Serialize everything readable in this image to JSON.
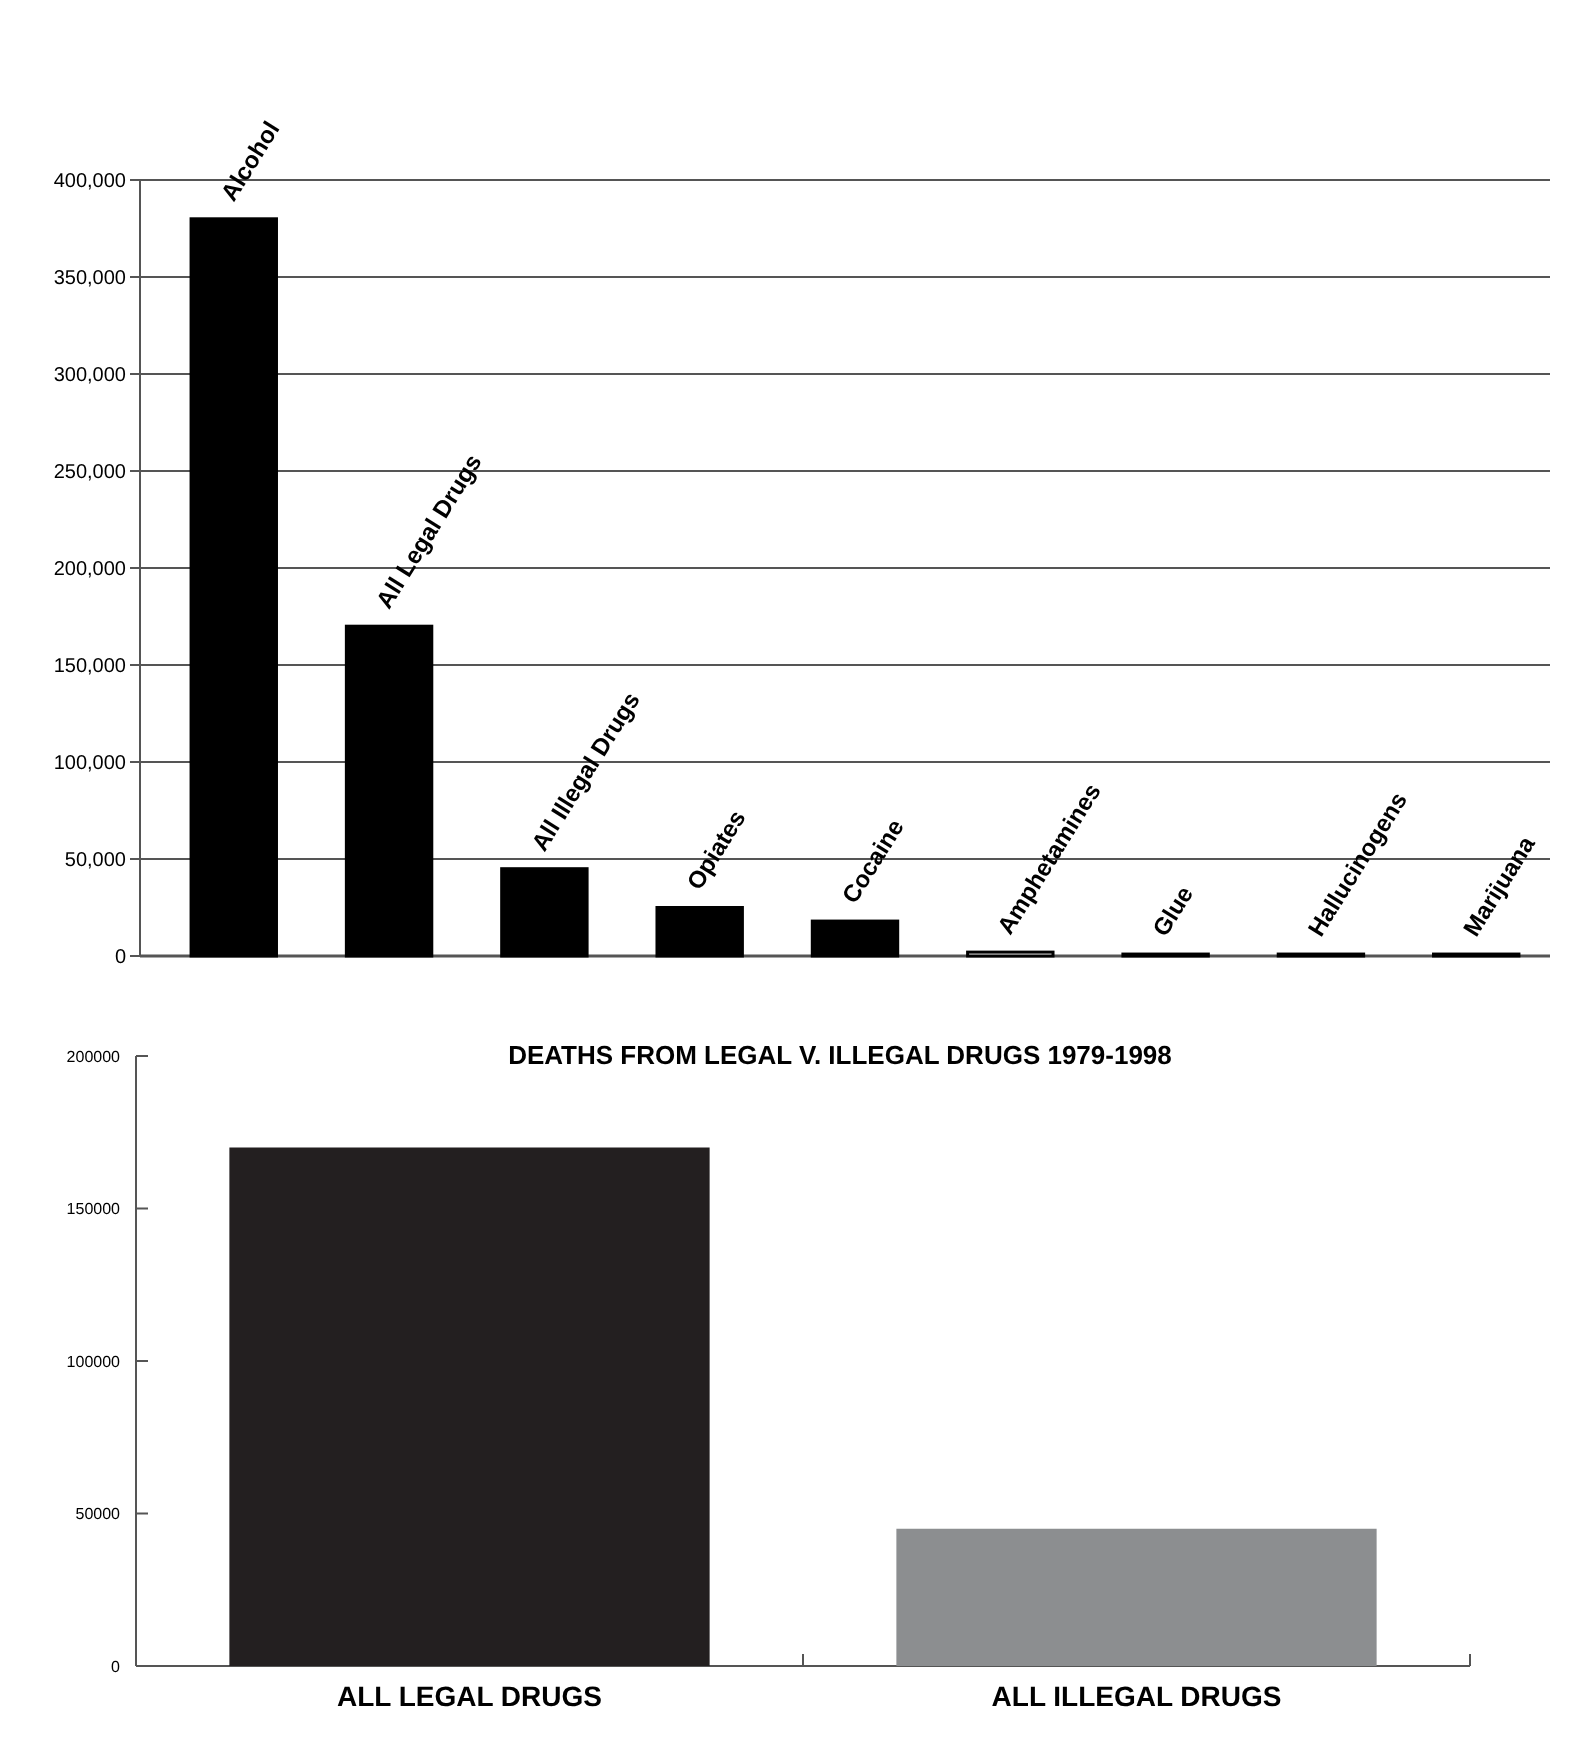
{
  "chart_data": [
    {
      "type": "bar",
      "categories": [
        "Alcohol",
        "All Legal Drugs",
        "All Illegal Drugs",
        "Opiates",
        "Cocaine",
        "Amphetamines",
        "Glue",
        "Hallucinogens",
        "Marijuana"
      ],
      "values": [
        380000,
        170000,
        45000,
        25000,
        18000,
        2000,
        1000,
        1000,
        1000
      ],
      "colors": [
        "#000000",
        "#000000",
        "#000000",
        "#000000",
        "#000000",
        "#ffffff",
        "#000000",
        "#000000",
        "#000000"
      ],
      "ylim": [
        0,
        400000
      ],
      "yticks": [
        {
          "value": 0,
          "label": "0"
        },
        {
          "value": 50000,
          "label": "50,000"
        },
        {
          "value": 100000,
          "label": "100,000"
        },
        {
          "value": 150000,
          "label": "150,000"
        },
        {
          "value": 200000,
          "label": "200,000"
        },
        {
          "value": 250000,
          "label": "250,000"
        },
        {
          "value": 300000,
          "label": "300,000"
        },
        {
          "value": 350000,
          "label": "350,000"
        },
        {
          "value": 400000,
          "label": "400,000"
        }
      ],
      "grid": "y"
    },
    {
      "type": "bar",
      "title": "DEATHS FROM LEGAL V. ILLEGAL DRUGS 1979-1998",
      "categories": [
        "ALL LEGAL DRUGS",
        "ALL ILLEGAL DRUGS"
      ],
      "values": [
        170000,
        45000
      ],
      "colors": [
        "#231f20",
        "#8c8e90"
      ],
      "ylim": [
        0,
        200000
      ],
      "yticks": [
        0,
        50000,
        100000,
        150000,
        200000
      ],
      "grid": false
    }
  ]
}
